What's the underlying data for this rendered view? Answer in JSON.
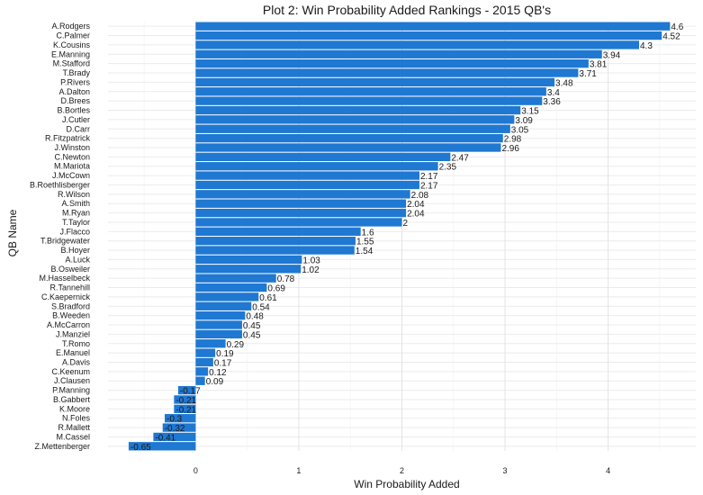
{
  "chart_data": {
    "type": "bar",
    "orientation": "horizontal",
    "title": "Plot 2: Win Probability Added Rankings - 2015 QB's",
    "xlabel": "Win Probability Added",
    "ylabel": "QB Name",
    "xlim": [
      -0.85,
      4.85
    ],
    "xticks": [
      0,
      1,
      2,
      3,
      4
    ],
    "grid": true,
    "bar_color": "#1f78d1",
    "categories": [
      "A.Rodgers",
      "C.Palmer",
      "K.Cousins",
      "E.Manning",
      "M.Stafford",
      "T.Brady",
      "P.Rivers",
      "A.Dalton",
      "D.Brees",
      "B.Bortles",
      "J.Cutler",
      "D.Carr",
      "R.Fitzpatrick",
      "J.Winston",
      "C.Newton",
      "M.Mariota",
      "J.McCown",
      "B.Roethlisberger",
      "R.Wilson",
      "A.Smith",
      "M.Ryan",
      "T.Taylor",
      "J.Flacco",
      "T.Bridgewater",
      "B.Hoyer",
      "A.Luck",
      "B.Osweiler",
      "M.Hasselbeck",
      "R.Tannehill",
      "C.Kaepernick",
      "S.Bradford",
      "B.Weeden",
      "A.McCarron",
      "J.Manziel",
      "T.Romo",
      "E.Manuel",
      "A.Davis",
      "C.Keenum",
      "J.Clausen",
      "P.Manning",
      "B.Gabbert",
      "K.Moore",
      "N.Foles",
      "R.Mallett",
      "M.Cassel",
      "Z.Mettenberger"
    ],
    "values": [
      4.6,
      4.52,
      4.3,
      3.94,
      3.81,
      3.71,
      3.48,
      3.4,
      3.36,
      3.15,
      3.09,
      3.05,
      2.98,
      2.96,
      2.47,
      2.35,
      2.17,
      2.17,
      2.08,
      2.04,
      2.04,
      2,
      1.6,
      1.55,
      1.54,
      1.03,
      1.02,
      0.78,
      0.69,
      0.61,
      0.54,
      0.48,
      0.45,
      0.45,
      0.29,
      0.19,
      0.17,
      0.12,
      0.09,
      -0.17,
      -0.21,
      -0.21,
      -0.3,
      -0.32,
      -0.41,
      -0.65
    ],
    "value_labels": [
      "4.6",
      "4.52",
      "4.3",
      "3.94",
      "3.81",
      "3.71",
      "3.48",
      "3.4",
      "3.36",
      "3.15",
      "3.09",
      "3.05",
      "2.98",
      "2.96",
      "2.47",
      "2.35",
      "2.17",
      "2.17",
      "2.08",
      "2.04",
      "2.04",
      "2",
      "1.6",
      "1.55",
      "1.54",
      "1.03",
      "1.02",
      "0.78",
      "0.69",
      "0.61",
      "0.54",
      "0.48",
      "0.45",
      "0.45",
      "0.29",
      "0.19",
      "0.17",
      "0.12",
      "0.09",
      "-0.17",
      "-0.21",
      "-0.21",
      "-0.3",
      "-0.32",
      "-0.41",
      "-0.65"
    ]
  }
}
